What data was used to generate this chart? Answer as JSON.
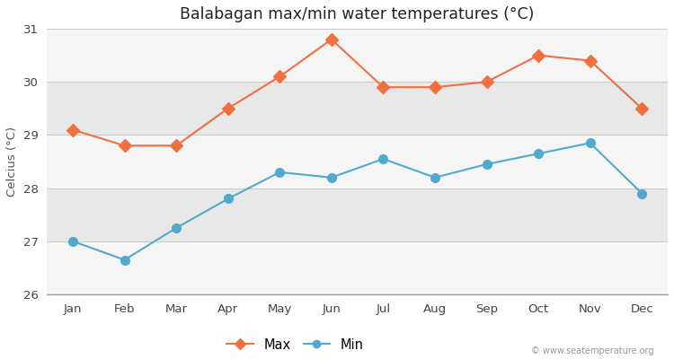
{
  "title": "Balabagan max/min water temperatures (°C)",
  "ylabel": "Celcius (°C)",
  "months": [
    "Jan",
    "Feb",
    "Mar",
    "Apr",
    "May",
    "Jun",
    "Jul",
    "Aug",
    "Sep",
    "Oct",
    "Nov",
    "Dec"
  ],
  "max_temps": [
    29.1,
    28.8,
    28.8,
    29.5,
    30.1,
    30.8,
    29.9,
    29.9,
    30.0,
    30.5,
    30.4,
    29.5
  ],
  "min_temps": [
    27.0,
    26.65,
    27.25,
    27.8,
    28.3,
    28.2,
    28.55,
    28.2,
    28.45,
    28.65,
    28.85,
    27.9
  ],
  "max_color": "#f07040",
  "min_color": "#50aad0",
  "ylim": [
    26,
    31
  ],
  "yticks": [
    26,
    27,
    28,
    29,
    30,
    31
  ],
  "outer_bg": "#ffffff",
  "band_light": "#f5f5f5",
  "band_dark": "#e8e8e8",
  "watermark": "© www.seatemperature.org",
  "legend_max": "Max",
  "legend_min": "Min",
  "max_marker": "D",
  "min_marker": "o",
  "linewidth": 1.5,
  "max_markersize": 7,
  "min_markersize": 7
}
